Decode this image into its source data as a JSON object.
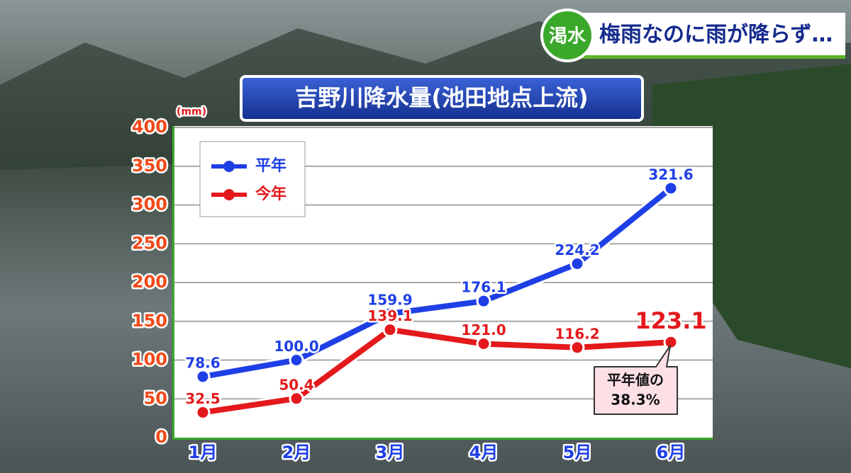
{
  "chart_data": {
    "type": "line",
    "badge": "渇水",
    "headline": "梅雨なのに雨が降らず…",
    "title": "吉野川降水量(池田地点上流)",
    "ylabel": "(mm)",
    "categories": [
      "1月",
      "2月",
      "3月",
      "4月",
      "5月",
      "6月"
    ],
    "series": [
      {
        "name": "平年",
        "color": "#1f3fe6",
        "values": [
          78.6,
          100.0,
          159.9,
          176.1,
          224.2,
          321.6
        ],
        "value_labels": [
          "78.6",
          "100.0",
          "159.9",
          "176.1",
          "224.2",
          "321.6"
        ]
      },
      {
        "name": "今年",
        "color": "#e3191c",
        "values": [
          32.5,
          50.4,
          139.1,
          121.0,
          116.2,
          123.1
        ],
        "value_labels": [
          "32.5",
          "50.4",
          "139.1",
          "121.0",
          "116.2",
          "123.1"
        ]
      }
    ],
    "ylim": [
      0,
      400
    ],
    "yticks": [
      0,
      50,
      100,
      150,
      200,
      250,
      300,
      350,
      400
    ],
    "grid": true,
    "legend": "upper left",
    "annotation": [
      "平年値の",
      "38.3%"
    ]
  }
}
